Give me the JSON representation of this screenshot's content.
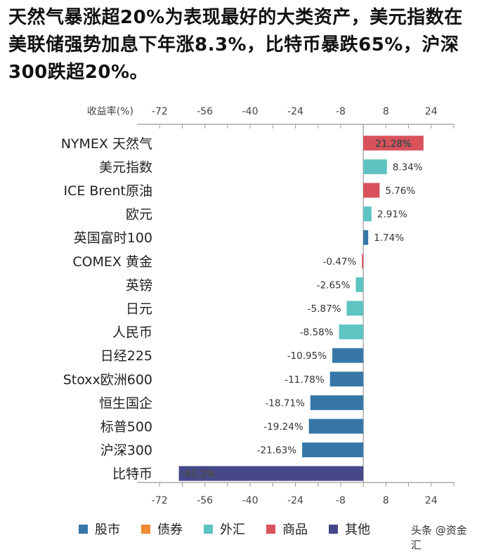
{
  "headline": "天然气暴涨超20%为表现最好的大类资产，美元指数在美联储强势加息下年涨8.3%，比特币暴跌65%，沪深300跌超20%。",
  "watermark": "头条 @资金汇",
  "chart_data": {
    "type": "bar",
    "orientation": "horizontal",
    "axis_label": "收益率(%)",
    "xlim": [
      -80,
      32
    ],
    "ticks": [
      -72,
      -56,
      -40,
      -24,
      -8,
      8,
      24
    ],
    "grid": false,
    "legend_position": "bottom",
    "legend": [
      {
        "name": "股市",
        "color": "#3677a8"
      },
      {
        "name": "债券",
        "color": "#ee8a32"
      },
      {
        "name": "外汇",
        "color": "#5ec4c1"
      },
      {
        "name": "商品",
        "color": "#d9525b"
      },
      {
        "name": "其他",
        "color": "#46488a"
      }
    ],
    "categories": [
      "NYMEX 天然气",
      "美元指数",
      "ICE Brent原油",
      "欧元",
      "英国富时100",
      "COMEX 黄金",
      "英镑",
      "日元",
      "人民币",
      "日经225",
      "Stoxx欧洲600",
      "恒生国企",
      "标普500",
      "沪深300",
      "比特币"
    ],
    "values": [
      21.28,
      8.34,
      5.76,
      2.91,
      1.74,
      -0.47,
      -2.65,
      -5.87,
      -8.58,
      -10.95,
      -11.78,
      -18.71,
      -19.24,
      -21.63,
      -65.2
    ],
    "labels": [
      "21.28%",
      "8.34%",
      "5.76%",
      "2.91%",
      "1.74%",
      "-0.47%",
      "-2.65%",
      "-5.87%",
      "-8.58%",
      "-10.95%",
      "-11.78%",
      "-18.71%",
      "-19.24%",
      "-21.63%",
      "-65.2%"
    ],
    "groups": [
      "商品",
      "外汇",
      "商品",
      "外汇",
      "股市",
      "商品",
      "外汇",
      "外汇",
      "外汇",
      "股市",
      "股市",
      "股市",
      "股市",
      "股市",
      "其他"
    ]
  }
}
